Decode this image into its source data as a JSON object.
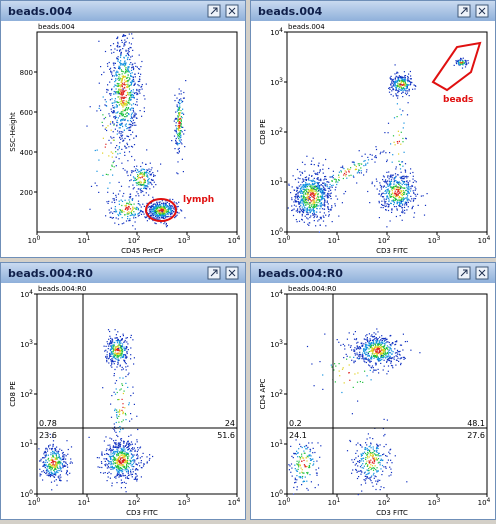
{
  "windows": [
    {
      "title": "beads.004",
      "plot_label": "beads.004",
      "x_label": "CD45 PerCP",
      "y_label": "SSC-Height",
      "x_scale": "log",
      "xlim": [
        1,
        10000
      ],
      "xticks": [
        {
          "value": 1,
          "label": "10",
          "exponent": "0"
        },
        {
          "value": 10,
          "label": "10",
          "exponent": "1"
        },
        {
          "value": 100,
          "label": "10",
          "exponent": "2"
        },
        {
          "value": 1000,
          "label": "10",
          "exponent": "3"
        },
        {
          "value": 10000,
          "label": "10",
          "exponent": "4"
        }
      ],
      "y_scale": "linear",
      "ylim": [
        0,
        1000
      ],
      "yticks": [
        200,
        400,
        600,
        800
      ],
      "gate_label": "lymph"
    },
    {
      "title": "beads.004",
      "plot_label": "beads.004",
      "x_label": "CD3 FITC",
      "y_label": "CD8 PE",
      "x_scale": "log",
      "xlim": [
        1,
        10000
      ],
      "xticks": [
        {
          "value": 1,
          "label": "10",
          "exponent": "0"
        },
        {
          "value": 10,
          "label": "10",
          "exponent": "1"
        },
        {
          "value": 100,
          "label": "10",
          "exponent": "2"
        },
        {
          "value": 1000,
          "label": "10",
          "exponent": "3"
        },
        {
          "value": 10000,
          "label": "10",
          "exponent": "4"
        }
      ],
      "y_scale": "log",
      "ylim": [
        1,
        10000
      ],
      "yticks": [
        {
          "value": 1,
          "label": "10",
          "exponent": "0"
        },
        {
          "value": 10,
          "label": "10",
          "exponent": "1"
        },
        {
          "value": 100,
          "label": "10",
          "exponent": "2"
        },
        {
          "value": 1000,
          "label": "10",
          "exponent": "3"
        },
        {
          "value": 10000,
          "label": "10",
          "exponent": "4"
        }
      ],
      "gate_label": "beads"
    },
    {
      "title": "beads.004:R0",
      "plot_label": "beads.004:R0",
      "x_label": "CD3 FITC",
      "y_label": "CD8 PE",
      "x_scale": "log",
      "xlim": [
        1,
        10000
      ],
      "xticks": [
        {
          "value": 1,
          "label": "10",
          "exponent": "0"
        },
        {
          "value": 10,
          "label": "10",
          "exponent": "1"
        },
        {
          "value": 100,
          "label": "10",
          "exponent": "2"
        },
        {
          "value": 1000,
          "label": "10",
          "exponent": "3"
        },
        {
          "value": 10000,
          "label": "10",
          "exponent": "4"
        }
      ],
      "y_scale": "log",
      "ylim": [
        1,
        10000
      ],
      "yticks": [
        {
          "value": 1,
          "label": "10",
          "exponent": "0"
        },
        {
          "value": 10,
          "label": "10",
          "exponent": "1"
        },
        {
          "value": 100,
          "label": "10",
          "exponent": "2"
        },
        {
          "value": 1000,
          "label": "10",
          "exponent": "3"
        },
        {
          "value": 10000,
          "label": "10",
          "exponent": "4"
        }
      ],
      "quadrants": {
        "upper_left": "0.78",
        "upper_right": "24",
        "lower_left": "23.6",
        "lower_right": "51.6"
      }
    },
    {
      "title": "beads.004:R0",
      "plot_label": "beads.004:R0",
      "x_label": "CD3 FITC",
      "y_label": "CD4 APC",
      "x_scale": "log",
      "xlim": [
        1,
        10000
      ],
      "xticks": [
        {
          "value": 1,
          "label": "10",
          "exponent": "0"
        },
        {
          "value": 10,
          "label": "10",
          "exponent": "1"
        },
        {
          "value": 100,
          "label": "10",
          "exponent": "2"
        },
        {
          "value": 1000,
          "label": "10",
          "exponent": "3"
        },
        {
          "value": 10000,
          "label": "10",
          "exponent": "4"
        }
      ],
      "y_scale": "log",
      "ylim": [
        1,
        10000
      ],
      "yticks": [
        {
          "value": 1,
          "label": "10",
          "exponent": "0"
        },
        {
          "value": 10,
          "label": "10",
          "exponent": "1"
        },
        {
          "value": 100,
          "label": "10",
          "exponent": "2"
        },
        {
          "value": 1000,
          "label": "10",
          "exponent": "3"
        },
        {
          "value": 10000,
          "label": "10",
          "exponent": "4"
        }
      ],
      "quadrants": {
        "upper_left": "0.2",
        "upper_right": "48.1",
        "lower_left": "24.1",
        "lower_right": "27.6"
      }
    }
  ]
}
